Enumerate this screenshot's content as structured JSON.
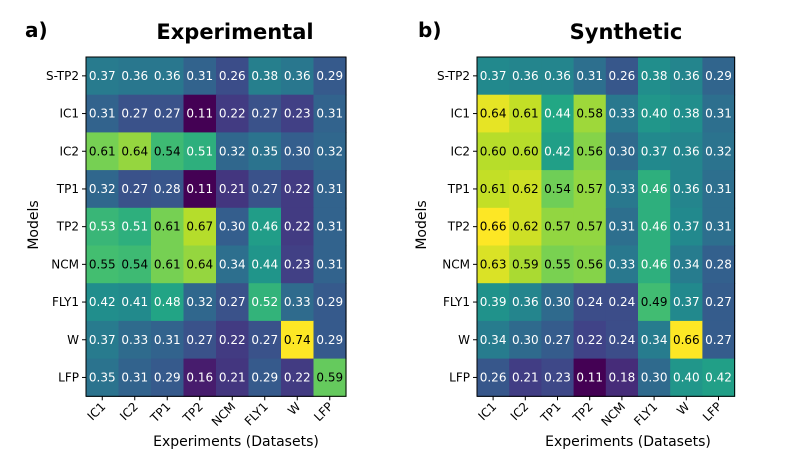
{
  "chart_data": [
    {
      "type": "heatmap",
      "panel_label": "a)",
      "title": "Experimental",
      "xlabel": "Experiments (Datasets)",
      "ylabel": "Models",
      "x": [
        "IC1",
        "IC2",
        "TP1",
        "TP2",
        "NCM",
        "FLY1",
        "W",
        "LFP"
      ],
      "y": [
        "S-TP2",
        "IC1",
        "IC2",
        "TP1",
        "TP2",
        "NCM",
        "FLY1",
        "W",
        "LFP"
      ],
      "values": [
        [
          0.37,
          0.36,
          0.36,
          0.31,
          0.26,
          0.38,
          0.36,
          0.29
        ],
        [
          0.31,
          0.27,
          0.27,
          0.11,
          0.22,
          0.27,
          0.23,
          0.31
        ],
        [
          0.61,
          0.64,
          0.54,
          0.51,
          0.32,
          0.35,
          0.3,
          0.32
        ],
        [
          0.32,
          0.27,
          0.28,
          0.11,
          0.21,
          0.27,
          0.22,
          0.31
        ],
        [
          0.53,
          0.51,
          0.61,
          0.67,
          0.3,
          0.46,
          0.22,
          0.31
        ],
        [
          0.55,
          0.54,
          0.61,
          0.64,
          0.34,
          0.44,
          0.23,
          0.31
        ],
        [
          0.42,
          0.41,
          0.48,
          0.32,
          0.27,
          0.52,
          0.33,
          0.29
        ],
        [
          0.37,
          0.33,
          0.31,
          0.27,
          0.22,
          0.27,
          0.74,
          0.29
        ],
        [
          0.35,
          0.31,
          0.29,
          0.16,
          0.21,
          0.29,
          0.22,
          0.59
        ]
      ],
      "colormap": "viridis",
      "color_range": [
        0.11,
        0.74
      ]
    },
    {
      "type": "heatmap",
      "panel_label": "b)",
      "title": "Synthetic",
      "xlabel": "Experiments (Datasets)",
      "ylabel": "Models",
      "x": [
        "IC1",
        "IC2",
        "TP1",
        "TP2",
        "NCM",
        "FLY1",
        "W",
        "LFP"
      ],
      "y": [
        "S-TP2",
        "IC1",
        "IC2",
        "TP1",
        "TP2",
        "NCM",
        "FLY1",
        "W",
        "LFP"
      ],
      "values": [
        [
          0.37,
          0.36,
          0.36,
          0.31,
          0.26,
          0.38,
          0.36,
          0.29
        ],
        [
          0.64,
          0.61,
          0.44,
          0.58,
          0.33,
          0.4,
          0.38,
          0.31
        ],
        [
          0.6,
          0.6,
          0.42,
          0.56,
          0.3,
          0.37,
          0.36,
          0.32
        ],
        [
          0.61,
          0.62,
          0.54,
          0.57,
          0.33,
          0.46,
          0.36,
          0.31
        ],
        [
          0.66,
          0.62,
          0.57,
          0.57,
          0.31,
          0.46,
          0.37,
          0.31
        ],
        [
          0.63,
          0.59,
          0.55,
          0.56,
          0.33,
          0.46,
          0.34,
          0.28
        ],
        [
          0.39,
          0.36,
          0.3,
          0.24,
          0.24,
          0.49,
          0.37,
          0.27
        ],
        [
          0.34,
          0.3,
          0.27,
          0.22,
          0.24,
          0.34,
          0.66,
          0.27
        ],
        [
          0.26,
          0.21,
          0.23,
          0.11,
          0.18,
          0.3,
          0.4,
          0.42
        ]
      ],
      "colormap": "viridis",
      "color_range": [
        0.11,
        0.66
      ]
    }
  ]
}
